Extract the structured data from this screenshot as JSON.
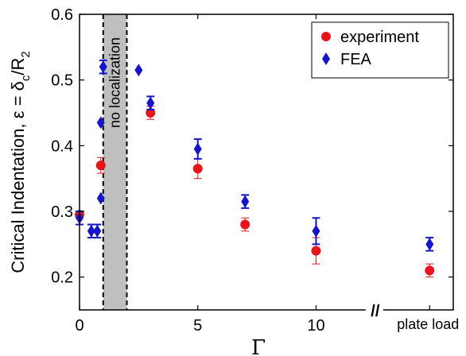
{
  "chart_data": {
    "type": "scatter",
    "xlabel": "Γ",
    "ylabel": {
      "main": "Critical Indentation, ε = δ",
      "sub_c": "c",
      "slash_r": "/R",
      "sub_2": "2"
    },
    "xlim": [
      0,
      15.8
    ],
    "ylim": [
      0.15,
      0.6
    ],
    "x_ticks": [
      {
        "value": 0,
        "label": "0"
      },
      {
        "value": 5,
        "label": "5"
      },
      {
        "value": 10,
        "label": "10"
      }
    ],
    "y_ticks": [
      {
        "value": 0.2,
        "label": "0.2"
      },
      {
        "value": 0.3,
        "label": "0.3"
      },
      {
        "value": 0.4,
        "label": "0.4"
      },
      {
        "value": 0.5,
        "label": "0.5"
      },
      {
        "value": 0.6,
        "label": "0.6"
      }
    ],
    "axis_break": {
      "x": 12.5,
      "symbol": "//"
    },
    "extra_x_label": {
      "x": 14.8,
      "label": "plate load"
    },
    "shaded_region": {
      "x0": 1.0,
      "x1": 2.0,
      "label": "no localization",
      "color": "#bfbfbf"
    },
    "legend": {
      "position": "top-right"
    },
    "series": [
      {
        "name": "experiment",
        "marker": "circle",
        "color": "#e8141c",
        "points": [
          {
            "x": 0,
            "y": 0.295,
            "err": 0.0
          },
          {
            "x": 0.9,
            "y": 0.37,
            "err": 0.012
          },
          {
            "x": 3,
            "y": 0.45,
            "err": 0.01
          },
          {
            "x": 5,
            "y": 0.365,
            "err": 0.015
          },
          {
            "x": 7,
            "y": 0.28,
            "err": 0.01
          },
          {
            "x": 10,
            "y": 0.24,
            "err": 0.02
          },
          {
            "x": 14.8,
            "y": 0.21,
            "err": 0.01
          }
        ]
      },
      {
        "name": "FEA",
        "marker": "diamond",
        "color": "#1414c8",
        "points": [
          {
            "x": 0,
            "y": 0.29,
            "err": 0.01
          },
          {
            "x": 0.5,
            "y": 0.27,
            "err": 0.01
          },
          {
            "x": 0.75,
            "y": 0.27,
            "err": 0.01
          },
          {
            "x": 0.9,
            "y": 0.32,
            "err": 0.0
          },
          {
            "x": 0.9,
            "y": 0.435,
            "err": 0.0
          },
          {
            "x": 1.0,
            "y": 0.52,
            "err": 0.01
          },
          {
            "x": 2.5,
            "y": 0.515,
            "err": 0.0
          },
          {
            "x": 3,
            "y": 0.465,
            "err": 0.01
          },
          {
            "x": 5,
            "y": 0.395,
            "err": 0.015
          },
          {
            "x": 7,
            "y": 0.315,
            "err": 0.01
          },
          {
            "x": 10,
            "y": 0.27,
            "err": 0.02
          },
          {
            "x": 14.8,
            "y": 0.25,
            "err": 0.01
          }
        ]
      }
    ]
  }
}
